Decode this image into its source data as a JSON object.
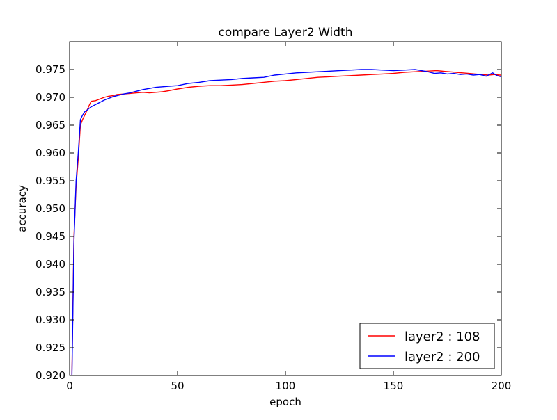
{
  "chart_data": {
    "type": "line",
    "title": "compare Layer2 Width",
    "xlabel": "epoch",
    "ylabel": "accuracy",
    "xlim": [
      0,
      200
    ],
    "ylim": [
      0.92,
      0.98
    ],
    "xticks": [
      "0",
      "50",
      "100",
      "150",
      "200"
    ],
    "xtick_values": [
      0,
      50,
      100,
      150,
      200
    ],
    "yticks": [
      "0.920",
      "0.925",
      "0.930",
      "0.935",
      "0.940",
      "0.945",
      "0.950",
      "0.955",
      "0.960",
      "0.965",
      "0.970",
      "0.975"
    ],
    "ytick_values": [
      0.92,
      0.925,
      0.93,
      0.935,
      0.94,
      0.945,
      0.95,
      0.955,
      0.96,
      0.965,
      0.97,
      0.975
    ],
    "grid": false,
    "legend_position": "bottom-right",
    "series": [
      {
        "name": "layer2 : 108",
        "color": "#ff0000",
        "points": [
          [
            1,
            0.919
          ],
          [
            2,
            0.945
          ],
          [
            3,
            0.954
          ],
          [
            4,
            0.959
          ],
          [
            5,
            0.965
          ],
          [
            6,
            0.966
          ],
          [
            7,
            0.9668
          ],
          [
            8,
            0.9676
          ],
          [
            9,
            0.9685
          ],
          [
            10,
            0.9693
          ],
          [
            12,
            0.9694
          ],
          [
            14,
            0.9697
          ],
          [
            16,
            0.97
          ],
          [
            18,
            0.9702
          ],
          [
            20,
            0.9703
          ],
          [
            22,
            0.9705
          ],
          [
            25,
            0.9706
          ],
          [
            28,
            0.9707
          ],
          [
            31,
            0.9708
          ],
          [
            34,
            0.9709
          ],
          [
            37,
            0.9708
          ],
          [
            40,
            0.9709
          ],
          [
            43,
            0.971
          ],
          [
            46,
            0.9712
          ],
          [
            50,
            0.9715
          ],
          [
            55,
            0.9718
          ],
          [
            60,
            0.972
          ],
          [
            65,
            0.9721
          ],
          [
            70,
            0.9721
          ],
          [
            75,
            0.9722
          ],
          [
            80,
            0.9723
          ],
          [
            85,
            0.9725
          ],
          [
            90,
            0.9727
          ],
          [
            95,
            0.9729
          ],
          [
            100,
            0.973
          ],
          [
            105,
            0.9732
          ],
          [
            110,
            0.9734
          ],
          [
            115,
            0.9736
          ],
          [
            120,
            0.9737
          ],
          [
            125,
            0.9738
          ],
          [
            130,
            0.9739
          ],
          [
            135,
            0.974
          ],
          [
            140,
            0.9741
          ],
          [
            145,
            0.9742
          ],
          [
            150,
            0.9743
          ],
          [
            155,
            0.9745
          ],
          [
            160,
            0.9746
          ],
          [
            165,
            0.9747
          ],
          [
            170,
            0.9748
          ],
          [
            173,
            0.9747
          ],
          [
            176,
            0.9746
          ],
          [
            179,
            0.9745
          ],
          [
            182,
            0.9744
          ],
          [
            185,
            0.9743
          ],
          [
            188,
            0.9742
          ],
          [
            191,
            0.9741
          ],
          [
            194,
            0.974
          ],
          [
            197,
            0.9741
          ],
          [
            199,
            0.974
          ],
          [
            200,
            0.974
          ]
        ]
      },
      {
        "name": "layer2 : 200",
        "color": "#0000ff",
        "points": [
          [
            1,
            0.918
          ],
          [
            2,
            0.944
          ],
          [
            3,
            0.955
          ],
          [
            4,
            0.96
          ],
          [
            5,
            0.966
          ],
          [
            6,
            0.9668
          ],
          [
            7,
            0.9674
          ],
          [
            8,
            0.9677
          ],
          [
            9,
            0.968
          ],
          [
            10,
            0.9683
          ],
          [
            12,
            0.9687
          ],
          [
            14,
            0.9691
          ],
          [
            16,
            0.9695
          ],
          [
            18,
            0.9698
          ],
          [
            20,
            0.9701
          ],
          [
            22,
            0.9703
          ],
          [
            25,
            0.9706
          ],
          [
            28,
            0.9708
          ],
          [
            31,
            0.9711
          ],
          [
            34,
            0.9714
          ],
          [
            37,
            0.9716
          ],
          [
            40,
            0.9718
          ],
          [
            43,
            0.9719
          ],
          [
            46,
            0.972
          ],
          [
            50,
            0.9721
          ],
          [
            55,
            0.9725
          ],
          [
            60,
            0.9727
          ],
          [
            65,
            0.973
          ],
          [
            70,
            0.9731
          ],
          [
            75,
            0.9732
          ],
          [
            80,
            0.9734
          ],
          [
            85,
            0.9735
          ],
          [
            90,
            0.9736
          ],
          [
            95,
            0.974
          ],
          [
            100,
            0.9742
          ],
          [
            105,
            0.9744
          ],
          [
            110,
            0.9745
          ],
          [
            115,
            0.9746
          ],
          [
            120,
            0.9747
          ],
          [
            125,
            0.9748
          ],
          [
            130,
            0.9749
          ],
          [
            135,
            0.975
          ],
          [
            140,
            0.975
          ],
          [
            145,
            0.9749
          ],
          [
            150,
            0.9748
          ],
          [
            155,
            0.9749
          ],
          [
            160,
            0.975
          ],
          [
            163,
            0.9748
          ],
          [
            166,
            0.9746
          ],
          [
            169,
            0.9743
          ],
          [
            172,
            0.9744
          ],
          [
            175,
            0.9742
          ],
          [
            178,
            0.9743
          ],
          [
            181,
            0.9741
          ],
          [
            184,
            0.9742
          ],
          [
            187,
            0.974
          ],
          [
            190,
            0.9741
          ],
          [
            193,
            0.9738
          ],
          [
            196,
            0.9744
          ],
          [
            198,
            0.9739
          ],
          [
            200,
            0.9737
          ]
        ]
      }
    ]
  }
}
